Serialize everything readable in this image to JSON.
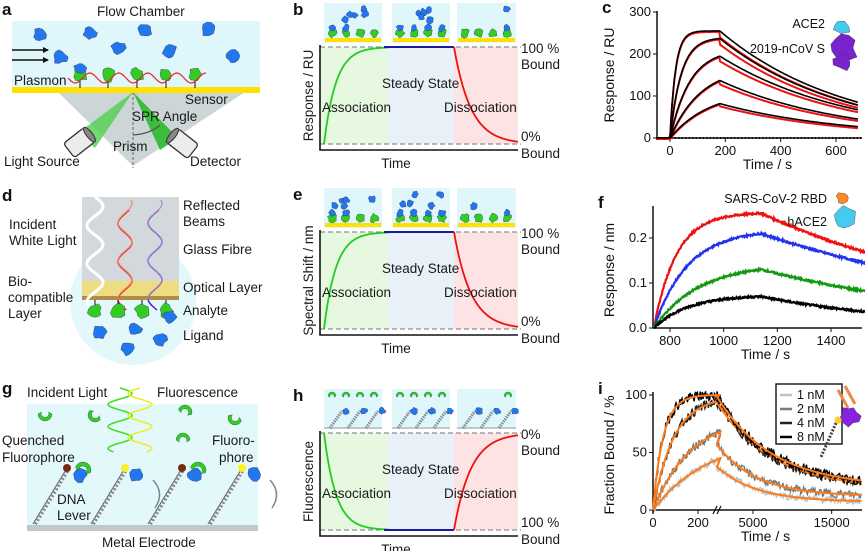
{
  "panels": {
    "a": {
      "letter": "a",
      "title": "Flow Chamber",
      "plasmon": "Plasmon",
      "sensor": "Sensor",
      "spr_angle": "SPR Angle",
      "prism": "Prism",
      "light_source": "Light Source",
      "detector": "Detector"
    },
    "b": {
      "letter": "b",
      "ylabel": "Response / RU",
      "xlabel": "Time",
      "association": "Association",
      "steady": "Steady State",
      "dissociation": "Dissociation",
      "top_pct": "100 %",
      "top_bound": "Bound",
      "bottom_pct": "0%",
      "bottom_bound": "Bound"
    },
    "d": {
      "letter": "d",
      "incident_1": "Incident",
      "incident_2": "White Light",
      "reflected_1": "Reflected",
      "reflected_2": "Beams",
      "glass": "Glass Fibre",
      "bio_1": "Bio-",
      "bio_2": "compatible",
      "bio_3": "Layer",
      "optical": "Optical Layer",
      "analyte": "Analyte",
      "ligand": "Ligand"
    },
    "e": {
      "letter": "e",
      "ylabel": "Spectral Shift / nm",
      "xlabel": "Time",
      "association": "Association",
      "steady": "Steady State",
      "dissociation": "Dissociation",
      "top_pct": "100 %",
      "top_bound": "Bound",
      "bottom_pct": "0%",
      "bottom_bound": "Bound"
    },
    "g": {
      "letter": "g",
      "incident": "Incident Light",
      "fluorescence": "Fluorescence",
      "quenched_1": "Quenched",
      "quenched_2": "Fluorophore",
      "fluoro_1": "Fluoro-",
      "fluoro_2": "phore",
      "dna_1": "DNA",
      "dna_2": "Lever",
      "electrode": "Metal Electrode"
    },
    "h": {
      "letter": "h",
      "ylabel": "Fluorescence",
      "xlabel": "Time",
      "association": "Association",
      "steady": "Steady State",
      "dissociation": "Dissociation",
      "top_pct": "0%",
      "top_bound": "Bound",
      "bottom_pct": "100 %",
      "bottom_bound": "Bound"
    }
  },
  "colors": {
    "association": "#22cc22",
    "steady": "#1a1aa0",
    "dissociation": "#ee1111",
    "ligand": "#2277ee",
    "receptor": "#33cc22",
    "gold": "#ffe000",
    "fit_orange": "#ff7a1a"
  },
  "chart_data": [
    {
      "type": "line",
      "letter": "c",
      "xlabel": "Time / s",
      "ylabel": "Response  / RU",
      "xlim": [
        -50,
        680
      ],
      "ylim": [
        0,
        300
      ],
      "xticks": [
        "0",
        "200",
        "400",
        "600"
      ],
      "xtick_values": [
        0,
        200,
        400,
        600
      ],
      "yticks": [
        "0",
        "100",
        "200",
        "300"
      ],
      "ytick_values": [
        0,
        100,
        200,
        300
      ],
      "legend": [
        "ACE2",
        "2019-nCoV S"
      ],
      "association_start": 0,
      "association_end": 180,
      "end": 680,
      "series": [
        {
          "peak": 255,
          "final": 85,
          "k": 0.05
        },
        {
          "peak": 237,
          "final": 78,
          "k": 0.025
        },
        {
          "peak": 195,
          "final": 67,
          "k": 0.014
        },
        {
          "peak": 137,
          "final": 45,
          "k": 0.009
        },
        {
          "peak": 82,
          "final": 27,
          "k": 0.007
        }
      ],
      "data_color": "#ee1111",
      "fit_color": "#000000"
    },
    {
      "type": "line",
      "letter": "f",
      "xlabel": "Time / s",
      "ylabel": "Response  / nm",
      "xlim": [
        735,
        1550
      ],
      "ylim": [
        0,
        0.27
      ],
      "xticks": [
        "800",
        "1000",
        "1200",
        "1400"
      ],
      "xtick_values": [
        800,
        1000,
        1200,
        1400
      ],
      "yticks": [
        "0.0",
        "0.1",
        "0.2"
      ],
      "ytick_values": [
        0,
        0.1,
        0.2
      ],
      "legend": [
        "SARS-CoV-2 RBD",
        "hACE2"
      ],
      "association_start": 740,
      "association_end": 1140,
      "end": 1545,
      "series": [
        {
          "color": "#ee1111",
          "peak": 0.255,
          "final": 0.165,
          "k": 0.012
        },
        {
          "color": "#2233ee",
          "peak": 0.21,
          "final": 0.142,
          "k": 0.008
        },
        {
          "color": "#119911",
          "peak": 0.13,
          "final": 0.08,
          "k": 0.006
        },
        {
          "color": "#000000",
          "peak": 0.07,
          "final": 0.035,
          "k": 0.008
        }
      ]
    },
    {
      "type": "line",
      "letter": "i",
      "xlabel": "Time / s",
      "ylabel": "Fraction Bound / %",
      "ylim": [
        0,
        100
      ],
      "xticks": [
        "0",
        "200",
        "5000",
        "15000"
      ],
      "xtick_values": [
        0,
        200,
        5000,
        15000
      ],
      "yticks": [
        "0",
        "50",
        "100"
      ],
      "ytick_values": [
        0,
        50,
        100
      ],
      "axis_break": 300,
      "association_end": 300,
      "end": 18800,
      "series": [
        {
          "name": "1 nM",
          "color": "#b8c4c4",
          "peak": 45,
          "final": 7,
          "k": 0.004
        },
        {
          "name": "2 nM",
          "color": "#6e7e7e",
          "peak": 68,
          "final": 12,
          "k": 0.006
        },
        {
          "name": "4 nM",
          "color": "#222222",
          "peak": 95,
          "final": 18,
          "k": 0.011
        },
        {
          "name": "8 nM",
          "color": "#000000",
          "peak": 100,
          "final": 20,
          "k": 0.022
        }
      ],
      "fit_color": "#ff7a1a"
    }
  ]
}
